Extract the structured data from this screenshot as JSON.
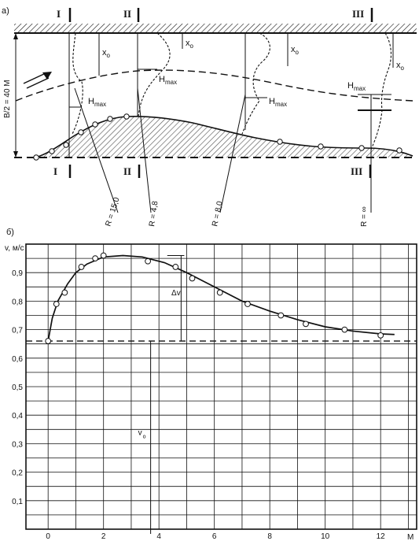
{
  "panel_a": {
    "label": "а)",
    "half_width_label": "B/2 = 40 M",
    "section_labels": [
      "I",
      "II",
      "III"
    ],
    "section_labels_top": [
      "I",
      "II",
      "III"
    ],
    "x0_label": "x",
    "x0_sub": "o",
    "hmax_label": "H",
    "hmax_sub": "max",
    "radii": [
      "R = 15,0",
      "R = 4,8",
      "R = 8,0",
      "R = ∞"
    ]
  },
  "panel_b": {
    "label": "б)"
  },
  "chart_data": {
    "type": "line",
    "ylabel": "v, м/с",
    "xlabel": "М",
    "xlim": [
      -0.8,
      13.3
    ],
    "ylim": [
      0,
      1.0
    ],
    "x_ticks": [
      0,
      2,
      4,
      6,
      8,
      10,
      12
    ],
    "y_ticks": [
      0.1,
      0.2,
      0.3,
      0.4,
      0.5,
      0.6,
      0.7,
      0.8,
      0.9
    ],
    "y_tick_labels": [
      "0,1",
      "0,2",
      "0,3",
      "0,4",
      "0,5",
      "0,6",
      "0,7",
      "0,8",
      "0,9"
    ],
    "grid": true,
    "series": [
      {
        "points": [
          [
            0.0,
            0.66
          ],
          [
            0.3,
            0.79
          ],
          [
            0.6,
            0.83
          ],
          [
            1.2,
            0.92
          ],
          [
            1.7,
            0.95
          ],
          [
            2.0,
            0.96
          ],
          [
            3.6,
            0.94
          ],
          [
            4.6,
            0.92
          ],
          [
            5.2,
            0.88
          ],
          [
            6.2,
            0.83
          ],
          [
            7.2,
            0.79
          ],
          [
            8.4,
            0.75
          ],
          [
            9.3,
            0.72
          ],
          [
            10.7,
            0.7
          ],
          [
            12.0,
            0.68
          ]
        ],
        "curve": [
          [
            0.0,
            0.66
          ],
          [
            0.15,
            0.74
          ],
          [
            0.35,
            0.8
          ],
          [
            0.7,
            0.86
          ],
          [
            1.0,
            0.9
          ],
          [
            1.4,
            0.93
          ],
          [
            2.0,
            0.955
          ],
          [
            2.7,
            0.96
          ],
          [
            3.4,
            0.955
          ],
          [
            4.2,
            0.935
          ],
          [
            5.0,
            0.9
          ],
          [
            6.0,
            0.85
          ],
          [
            7.0,
            0.8
          ],
          [
            8.0,
            0.765
          ],
          [
            9.0,
            0.735
          ],
          [
            10.0,
            0.71
          ],
          [
            11.0,
            0.695
          ],
          [
            12.0,
            0.685
          ],
          [
            12.5,
            0.683
          ]
        ]
      }
    ],
    "baseline": 0.66,
    "delta_label": "Δv",
    "v0_label": "v",
    "v0_sub": "o"
  }
}
